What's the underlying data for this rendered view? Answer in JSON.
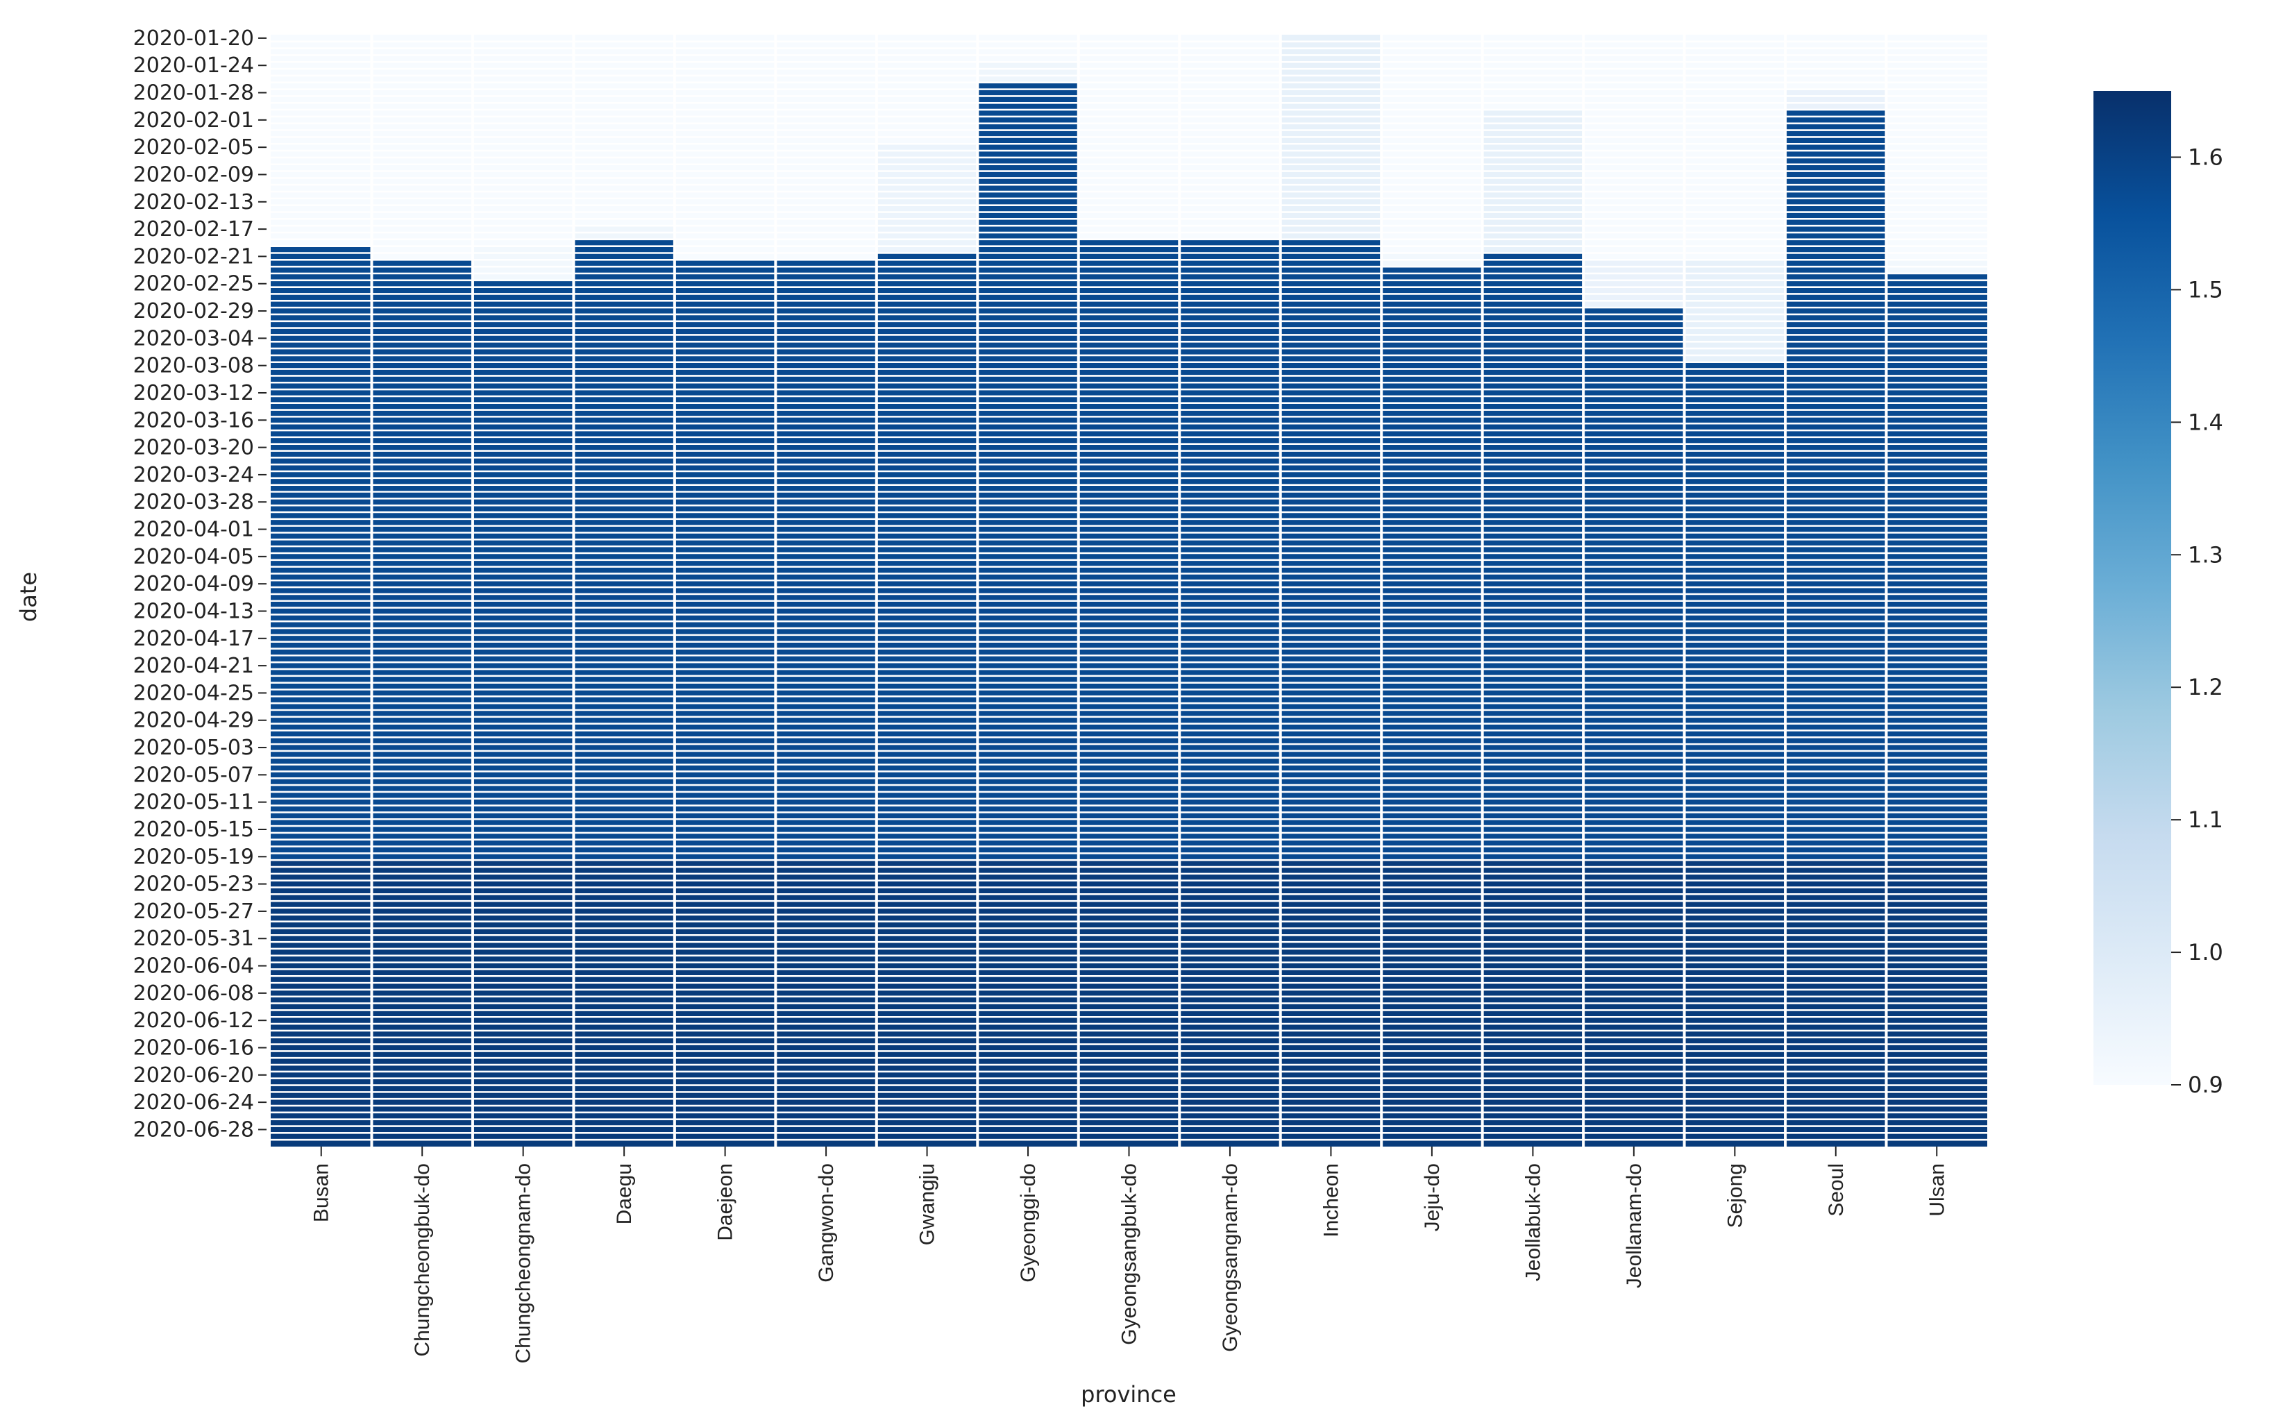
{
  "chart_data": {
    "type": "heatmap",
    "title": "",
    "xlabel": "province",
    "ylabel": "date",
    "x_categories": [
      "Busan",
      "Chungcheongbuk-do",
      "Chungcheongnam-do",
      "Daegu",
      "Daejeon",
      "Gangwon-do",
      "Gwangju",
      "Gyeonggi-do",
      "Gyeongsangbuk-do",
      "Gyeongsangnam-do",
      "Incheon",
      "Jeju-do",
      "Jeollabuk-do",
      "Jeollanam-do",
      "Sejong",
      "Seoul",
      "Ulsan"
    ],
    "date_range": [
      "2020-01-20",
      "2020-06-30"
    ],
    "y_tick_labels": [
      "2020-01-20",
      "2020-01-24",
      "2020-01-28",
      "2020-02-01",
      "2020-02-05",
      "2020-02-09",
      "2020-02-13",
      "2020-02-17",
      "2020-02-21",
      "2020-02-25",
      "2020-02-29",
      "2020-03-04",
      "2020-03-08",
      "2020-03-12",
      "2020-03-16",
      "2020-03-20",
      "2020-03-24",
      "2020-03-28",
      "2020-04-01",
      "2020-04-05",
      "2020-04-09",
      "2020-04-13",
      "2020-04-17",
      "2020-04-21",
      "2020-04-25",
      "2020-04-29",
      "2020-05-03",
      "2020-05-07",
      "2020-05-11",
      "2020-05-15",
      "2020-05-19",
      "2020-05-23",
      "2020-05-27",
      "2020-05-31",
      "2020-06-04",
      "2020-06-08",
      "2020-06-12",
      "2020-06-16",
      "2020-06-20",
      "2020-06-24",
      "2020-06-28"
    ],
    "segments": [
      [
        {
          "from": "2020-01-20",
          "to": "2020-02-19",
          "value": 0.9
        },
        {
          "from": "2020-02-20",
          "to": "2020-05-19",
          "value": 1.58
        },
        {
          "from": "2020-05-20",
          "to": "2020-06-30",
          "value": 1.62
        }
      ],
      [
        {
          "from": "2020-01-20",
          "to": "2020-02-21",
          "value": 0.9
        },
        {
          "from": "2020-02-22",
          "to": "2020-05-19",
          "value": 1.58
        },
        {
          "from": "2020-05-20",
          "to": "2020-06-30",
          "value": 1.62
        }
      ],
      [
        {
          "from": "2020-01-20",
          "to": "2020-02-19",
          "value": 0.9
        },
        {
          "from": "2020-02-20",
          "to": "2020-02-24",
          "value": 0.92
        },
        {
          "from": "2020-02-25",
          "to": "2020-05-19",
          "value": 1.58
        },
        {
          "from": "2020-05-20",
          "to": "2020-06-30",
          "value": 1.62
        }
      ],
      [
        {
          "from": "2020-01-20",
          "to": "2020-02-16",
          "value": 0.9
        },
        {
          "from": "2020-02-17",
          "to": "2020-02-18",
          "value": 0.93
        },
        {
          "from": "2020-02-19",
          "to": "2020-05-19",
          "value": 1.58
        },
        {
          "from": "2020-05-20",
          "to": "2020-06-30",
          "value": 1.62
        }
      ],
      [
        {
          "from": "2020-01-20",
          "to": "2020-02-21",
          "value": 0.9
        },
        {
          "from": "2020-02-22",
          "to": "2020-05-19",
          "value": 1.58
        },
        {
          "from": "2020-05-20",
          "to": "2020-06-30",
          "value": 1.62
        }
      ],
      [
        {
          "from": "2020-01-20",
          "to": "2020-02-21",
          "value": 0.9
        },
        {
          "from": "2020-02-22",
          "to": "2020-05-19",
          "value": 1.58
        },
        {
          "from": "2020-05-20",
          "to": "2020-06-30",
          "value": 1.62
        }
      ],
      [
        {
          "from": "2020-01-20",
          "to": "2020-02-04",
          "value": 0.9
        },
        {
          "from": "2020-02-05",
          "to": "2020-02-20",
          "value": 0.94
        },
        {
          "from": "2020-02-21",
          "to": "2020-05-19",
          "value": 1.58
        },
        {
          "from": "2020-05-20",
          "to": "2020-06-30",
          "value": 1.62
        }
      ],
      [
        {
          "from": "2020-01-20",
          "to": "2020-01-23",
          "value": 0.9
        },
        {
          "from": "2020-01-24",
          "to": "2020-01-26",
          "value": 0.93
        },
        {
          "from": "2020-01-27",
          "to": "2020-05-19",
          "value": 1.58
        },
        {
          "from": "2020-05-20",
          "to": "2020-06-30",
          "value": 1.62
        }
      ],
      [
        {
          "from": "2020-01-20",
          "to": "2020-02-18",
          "value": 0.9
        },
        {
          "from": "2020-02-19",
          "to": "2020-05-19",
          "value": 1.58
        },
        {
          "from": "2020-05-20",
          "to": "2020-06-30",
          "value": 1.62
        }
      ],
      [
        {
          "from": "2020-01-20",
          "to": "2020-02-18",
          "value": 0.9
        },
        {
          "from": "2020-02-19",
          "to": "2020-05-19",
          "value": 1.58
        },
        {
          "from": "2020-05-20",
          "to": "2020-06-30",
          "value": 1.62
        }
      ],
      [
        {
          "from": "2020-01-20",
          "to": "2020-02-18",
          "value": 0.96
        },
        {
          "from": "2020-02-19",
          "to": "2020-05-19",
          "value": 1.58
        },
        {
          "from": "2020-05-20",
          "to": "2020-06-30",
          "value": 1.62
        }
      ],
      [
        {
          "from": "2020-01-20",
          "to": "2020-02-20",
          "value": 0.9
        },
        {
          "from": "2020-02-21",
          "to": "2020-02-22",
          "value": 0.92
        },
        {
          "from": "2020-02-23",
          "to": "2020-05-19",
          "value": 1.58
        },
        {
          "from": "2020-05-20",
          "to": "2020-06-30",
          "value": 1.62
        }
      ],
      [
        {
          "from": "2020-01-20",
          "to": "2020-01-30",
          "value": 0.9
        },
        {
          "from": "2020-01-31",
          "to": "2020-02-20",
          "value": 0.96
        },
        {
          "from": "2020-02-21",
          "to": "2020-05-19",
          "value": 1.58
        },
        {
          "from": "2020-05-20",
          "to": "2020-06-30",
          "value": 1.62
        }
      ],
      [
        {
          "from": "2020-01-20",
          "to": "2020-02-21",
          "value": 0.9
        },
        {
          "from": "2020-02-22",
          "to": "2020-02-28",
          "value": 0.95
        },
        {
          "from": "2020-02-29",
          "to": "2020-05-19",
          "value": 1.58
        },
        {
          "from": "2020-05-20",
          "to": "2020-06-30",
          "value": 1.62
        }
      ],
      [
        {
          "from": "2020-01-20",
          "to": "2020-02-21",
          "value": 0.9
        },
        {
          "from": "2020-02-22",
          "to": "2020-03-07",
          "value": 0.96
        },
        {
          "from": "2020-03-08",
          "to": "2020-05-19",
          "value": 1.58
        },
        {
          "from": "2020-05-20",
          "to": "2020-06-30",
          "value": 1.62
        }
      ],
      [
        {
          "from": "2020-01-20",
          "to": "2020-01-27",
          "value": 0.9
        },
        {
          "from": "2020-01-28",
          "to": "2020-01-30",
          "value": 0.95
        },
        {
          "from": "2020-01-31",
          "to": "2020-05-19",
          "value": 1.58
        },
        {
          "from": "2020-05-20",
          "to": "2020-06-30",
          "value": 1.62
        }
      ],
      [
        {
          "from": "2020-01-20",
          "to": "2020-02-21",
          "value": 0.9
        },
        {
          "from": "2020-02-22",
          "to": "2020-02-23",
          "value": 0.92
        },
        {
          "from": "2020-02-24",
          "to": "2020-05-19",
          "value": 1.58
        },
        {
          "from": "2020-05-20",
          "to": "2020-06-30",
          "value": 1.62
        }
      ]
    ],
    "colorbar": {
      "cmap": "Blues",
      "range": [
        0.9,
        1.65
      ],
      "ticks": [
        "0.9",
        "1.0",
        "1.1",
        "1.2",
        "1.3",
        "1.4",
        "1.5",
        "1.6"
      ]
    },
    "grid": true,
    "legend": "right"
  }
}
